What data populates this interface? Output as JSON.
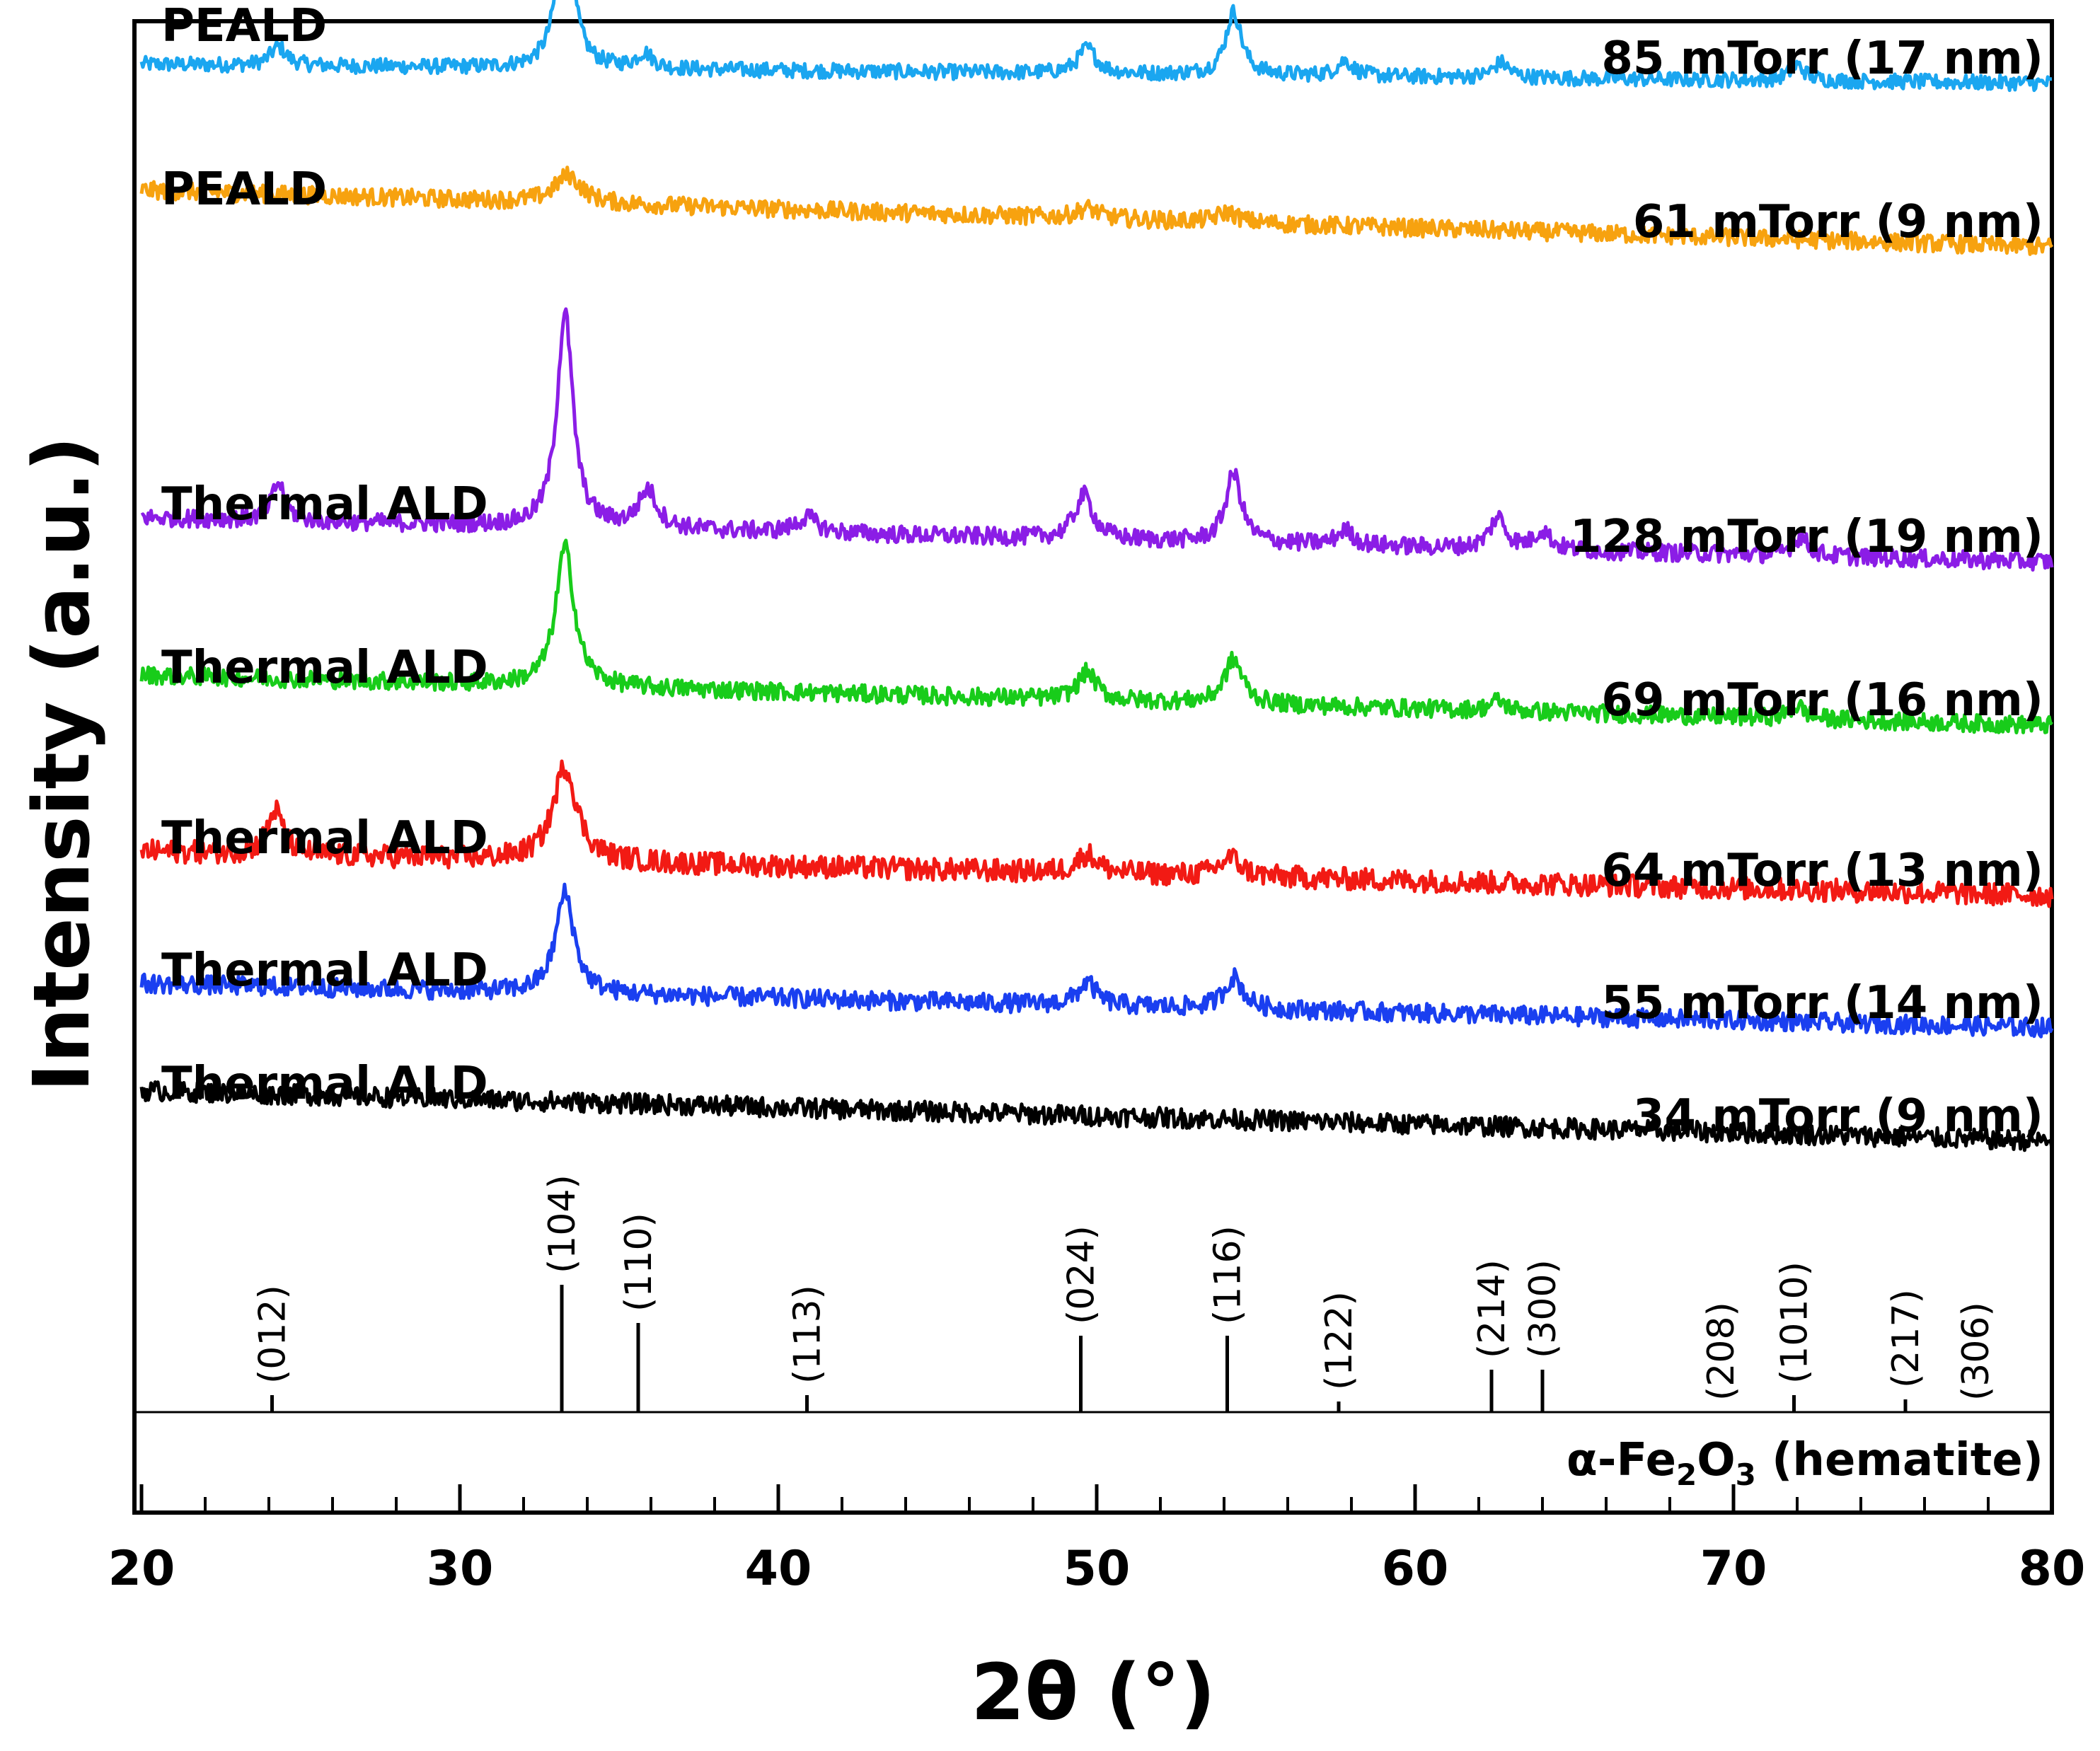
{
  "chart_data": {
    "type": "line",
    "title": "",
    "xlabel": "2θ (°)",
    "ylabel": "Intensity (a.u.)",
    "xlim": [
      20,
      80
    ],
    "x_ticks": [
      20,
      30,
      40,
      50,
      60,
      70,
      80
    ],
    "grid": false,
    "legend": "inline labels",
    "peak_positions": [
      24.1,
      33.2,
      35.6,
      40.9,
      49.5,
      54.1,
      57.6,
      62.4,
      64.0
    ],
    "series": [
      {
        "method": "PEALD",
        "condition": "85 mTorr (17 nm)",
        "color": "#1aa6f0",
        "offset": 8.3,
        "slope": 0.15,
        "noise": 0.12,
        "peaks": [
          [
            24.3,
            0.15,
            0.3
          ],
          [
            33.3,
            1.25,
            0.3
          ],
          [
            35.8,
            0.12,
            0.3
          ],
          [
            49.7,
            0.2,
            0.35
          ],
          [
            54.3,
            0.5,
            0.3
          ],
          [
            57.8,
            0.12,
            0.3
          ],
          [
            62.7,
            0.12,
            0.3
          ],
          [
            72.0,
            0.12,
            0.3
          ]
        ]
      },
      {
        "method": "PEALD",
        "condition": "61 mTorr (9 nm)",
        "color": "#f7a20f",
        "offset": 7.0,
        "slope": 0.45,
        "noise": 0.14,
        "peaks": [
          [
            33.4,
            0.22,
            0.5
          ],
          [
            49.7,
            0.08,
            0.4
          ],
          [
            54.1,
            0.08,
            0.4
          ]
        ]
      },
      {
        "method": "Thermal ALD",
        "condition": "128 mTorr (19 nm)",
        "color": "#8b1de6",
        "offset": 4.5,
        "slope": 0.35,
        "noise": 0.14,
        "peaks": [
          [
            24.3,
            0.3,
            0.25
          ],
          [
            33.3,
            1.7,
            0.3
          ],
          [
            35.9,
            0.3,
            0.35
          ],
          [
            40.9,
            0.12,
            0.4
          ],
          [
            49.6,
            0.35,
            0.35
          ],
          [
            54.3,
            0.55,
            0.3
          ],
          [
            57.8,
            0.12,
            0.3
          ],
          [
            62.6,
            0.25,
            0.3
          ],
          [
            64.0,
            0.15,
            0.3
          ],
          [
            72.1,
            0.15,
            0.3
          ]
        ]
      },
      {
        "method": "Thermal ALD",
        "condition": "69 mTorr (16 nm)",
        "color": "#18cc1a",
        "offset": 3.2,
        "slope": 0.4,
        "noise": 0.14,
        "peaks": [
          [
            33.3,
            1.1,
            0.35
          ],
          [
            49.7,
            0.22,
            0.35
          ],
          [
            54.3,
            0.35,
            0.35
          ],
          [
            62.6,
            0.08,
            0.3
          ],
          [
            72.0,
            0.1,
            0.3
          ]
        ]
      },
      {
        "method": "Thermal ALD",
        "condition": "64 mTorr (13 nm)",
        "color": "#f21a14",
        "offset": 1.85,
        "slope": 0.35,
        "noise": 0.18,
        "peaks": [
          [
            24.2,
            0.35,
            0.3
          ],
          [
            33.3,
            0.75,
            0.45
          ],
          [
            49.7,
            0.15,
            0.4
          ],
          [
            54.2,
            0.15,
            0.4
          ]
        ]
      },
      {
        "method": "Thermal ALD",
        "condition": "55 mTorr (14 nm)",
        "color": "#1a3ff0",
        "offset": 0.8,
        "slope": 0.35,
        "noise": 0.15,
        "peaks": [
          [
            33.3,
            0.8,
            0.35
          ],
          [
            49.7,
            0.18,
            0.35
          ],
          [
            54.3,
            0.25,
            0.35
          ]
        ]
      },
      {
        "method": "Thermal ALD",
        "condition": "34 mTorr (9 nm)",
        "color": "#000000",
        "offset": -0.1,
        "slope": 0.4,
        "noise": 0.16,
        "peaks": []
      }
    ],
    "reference": {
      "name_prefix": "α-Fe",
      "sub1": "2",
      "mid": "O",
      "sub2": "3",
      "name_suffix": " (hematite)",
      "lines": [
        {
          "label": "(012)",
          "x": 24.1,
          "height": 0.08
        },
        {
          "label": "(104)",
          "x": 33.2,
          "height": 0.6
        },
        {
          "label": "(110)",
          "x": 35.6,
          "height": 0.42
        },
        {
          "label": "(113)",
          "x": 40.9,
          "height": 0.08
        },
        {
          "label": "(024)",
          "x": 49.5,
          "height": 0.36
        },
        {
          "label": "(116)",
          "x": 54.1,
          "height": 0.36
        },
        {
          "label": "(122)",
          "x": 57.6,
          "height": 0.05
        },
        {
          "label": "(214)",
          "x": 62.4,
          "height": 0.2
        },
        {
          "label": "(300)",
          "x": 64.0,
          "height": 0.2
        },
        {
          "label": "(208)",
          "x": 69.6,
          "height": 0.0
        },
        {
          "label": "(1010)",
          "x": 71.9,
          "height": 0.08
        },
        {
          "label": "(217)",
          "x": 75.4,
          "height": 0.06
        },
        {
          "label": "(306)",
          "x": 77.6,
          "height": 0.0
        }
      ]
    }
  }
}
